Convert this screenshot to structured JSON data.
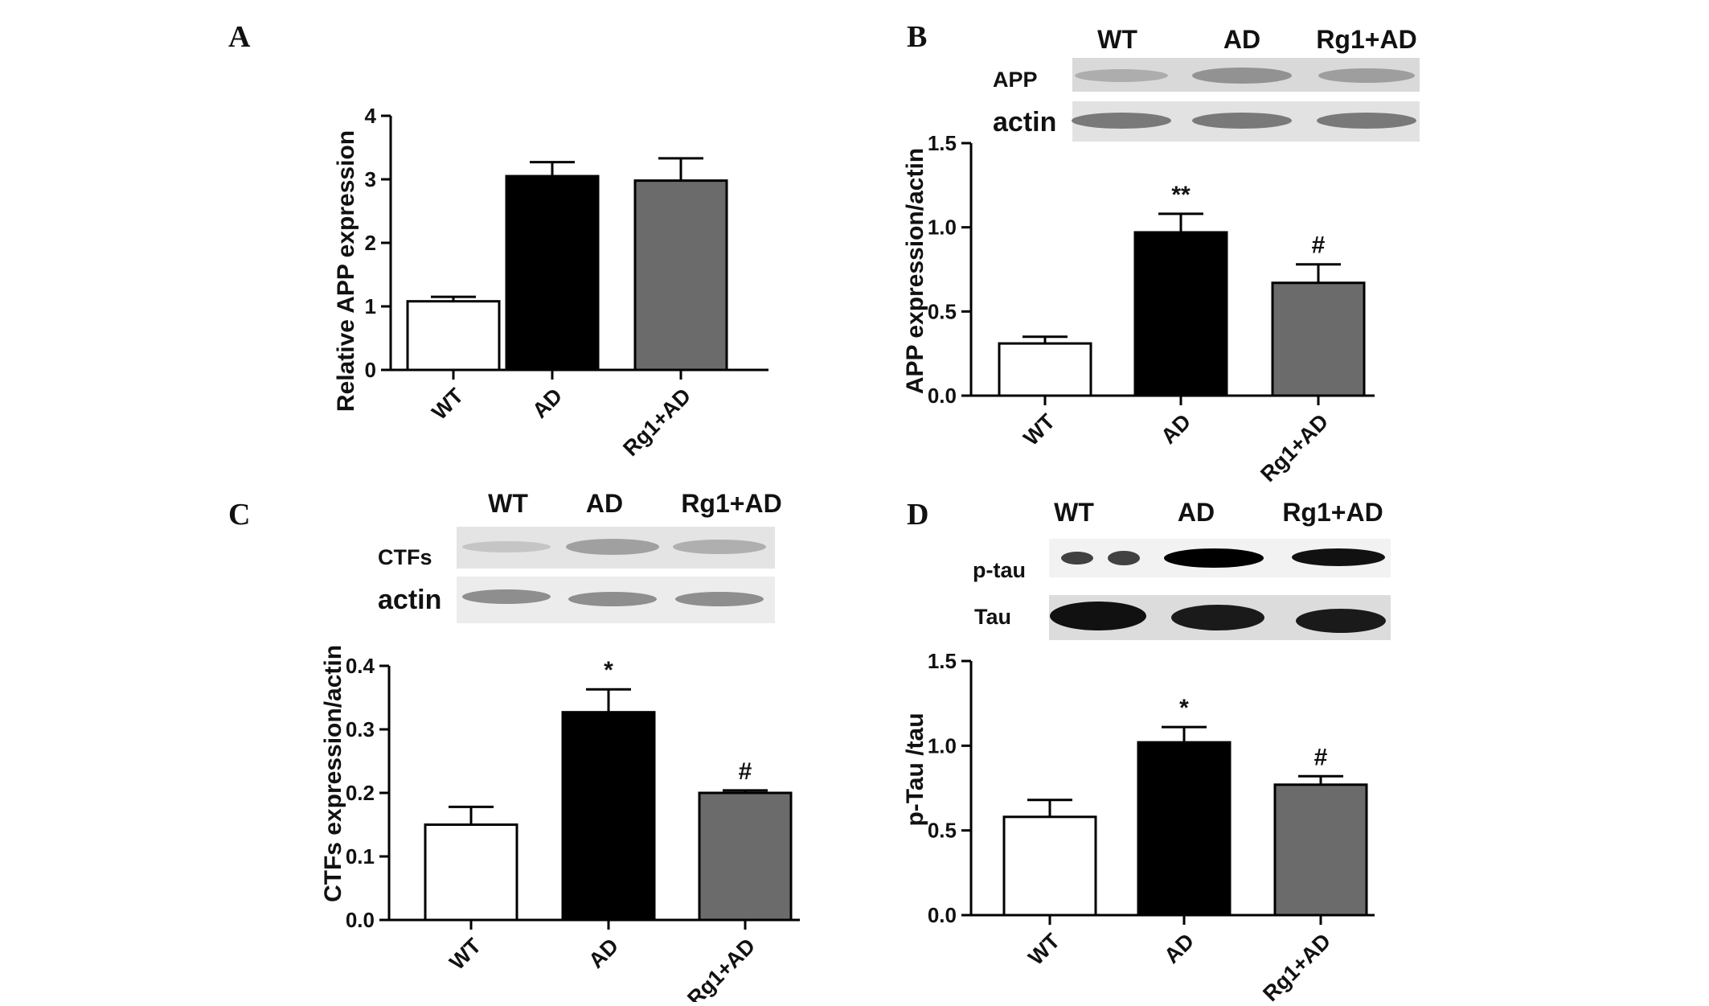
{
  "chart_data": [
    {
      "panel": "A",
      "type": "bar",
      "categories": [
        "WT",
        "AD",
        "Rg1+AD"
      ],
      "values": [
        1.08,
        3.05,
        2.98
      ],
      "errors": [
        0.07,
        0.22,
        0.35
      ],
      "ylabel": "Relative APP expression",
      "xlabel": "",
      "ylim": [
        0,
        4
      ],
      "yticks": [
        "0",
        "1",
        "2",
        "3",
        "4"
      ],
      "annotations": [
        "",
        "",
        ""
      ],
      "bar_colors": [
        "#ffffff",
        "#000000",
        "#6b6b6b"
      ]
    },
    {
      "panel": "B",
      "type": "bar",
      "categories": [
        "WT",
        "AD",
        "Rg1+AD"
      ],
      "values": [
        0.31,
        0.97,
        0.67
      ],
      "errors": [
        0.04,
        0.11,
        0.11
      ],
      "ylabel": "APP expression/actin",
      "xlabel": "",
      "ylim": [
        0,
        1.5
      ],
      "yticks": [
        "0.0",
        "0.5",
        "1.0",
        "1.5"
      ],
      "annotations": [
        "",
        "**",
        "#"
      ],
      "bar_colors": [
        "#ffffff",
        "#000000",
        "#6b6b6b"
      ],
      "blot": {
        "columns": [
          "WT",
          "AD",
          "Rg1+AD"
        ],
        "rows": [
          "APP",
          "actin"
        ]
      }
    },
    {
      "panel": "C",
      "type": "bar",
      "categories": [
        "WT",
        "AD",
        "Rg1+AD"
      ],
      "values": [
        0.15,
        0.327,
        0.2
      ],
      "errors": [
        0.028,
        0.036,
        0.004
      ],
      "ylabel": "CTFs expression/actin",
      "xlabel": "",
      "ylim": [
        0,
        0.4
      ],
      "yticks": [
        "0.0",
        "0.1",
        "0.2",
        "0.3",
        "0.4"
      ],
      "annotations": [
        "",
        "*",
        "#"
      ],
      "bar_colors": [
        "#ffffff",
        "#000000",
        "#6b6b6b"
      ],
      "blot": {
        "columns": [
          "WT",
          "AD",
          "Rg1+AD"
        ],
        "rows": [
          "CTFs",
          "actin"
        ]
      }
    },
    {
      "panel": "D",
      "type": "bar",
      "categories": [
        "WT",
        "AD",
        "Rg1+AD"
      ],
      "values": [
        0.58,
        1.02,
        0.77
      ],
      "errors": [
        0.1,
        0.09,
        0.05
      ],
      "ylabel": "p-Tau /tau",
      "xlabel": "",
      "ylim": [
        0,
        1.5
      ],
      "yticks": [
        "0.0",
        "0.5",
        "1.0",
        "1.5"
      ],
      "annotations": [
        "",
        "*",
        "#"
      ],
      "bar_colors": [
        "#ffffff",
        "#000000",
        "#6b6b6b"
      ],
      "blot": {
        "columns": [
          "WT",
          "AD",
          "Rg1+AD"
        ],
        "rows": [
          "p-tau",
          "Tau"
        ]
      }
    }
  ]
}
